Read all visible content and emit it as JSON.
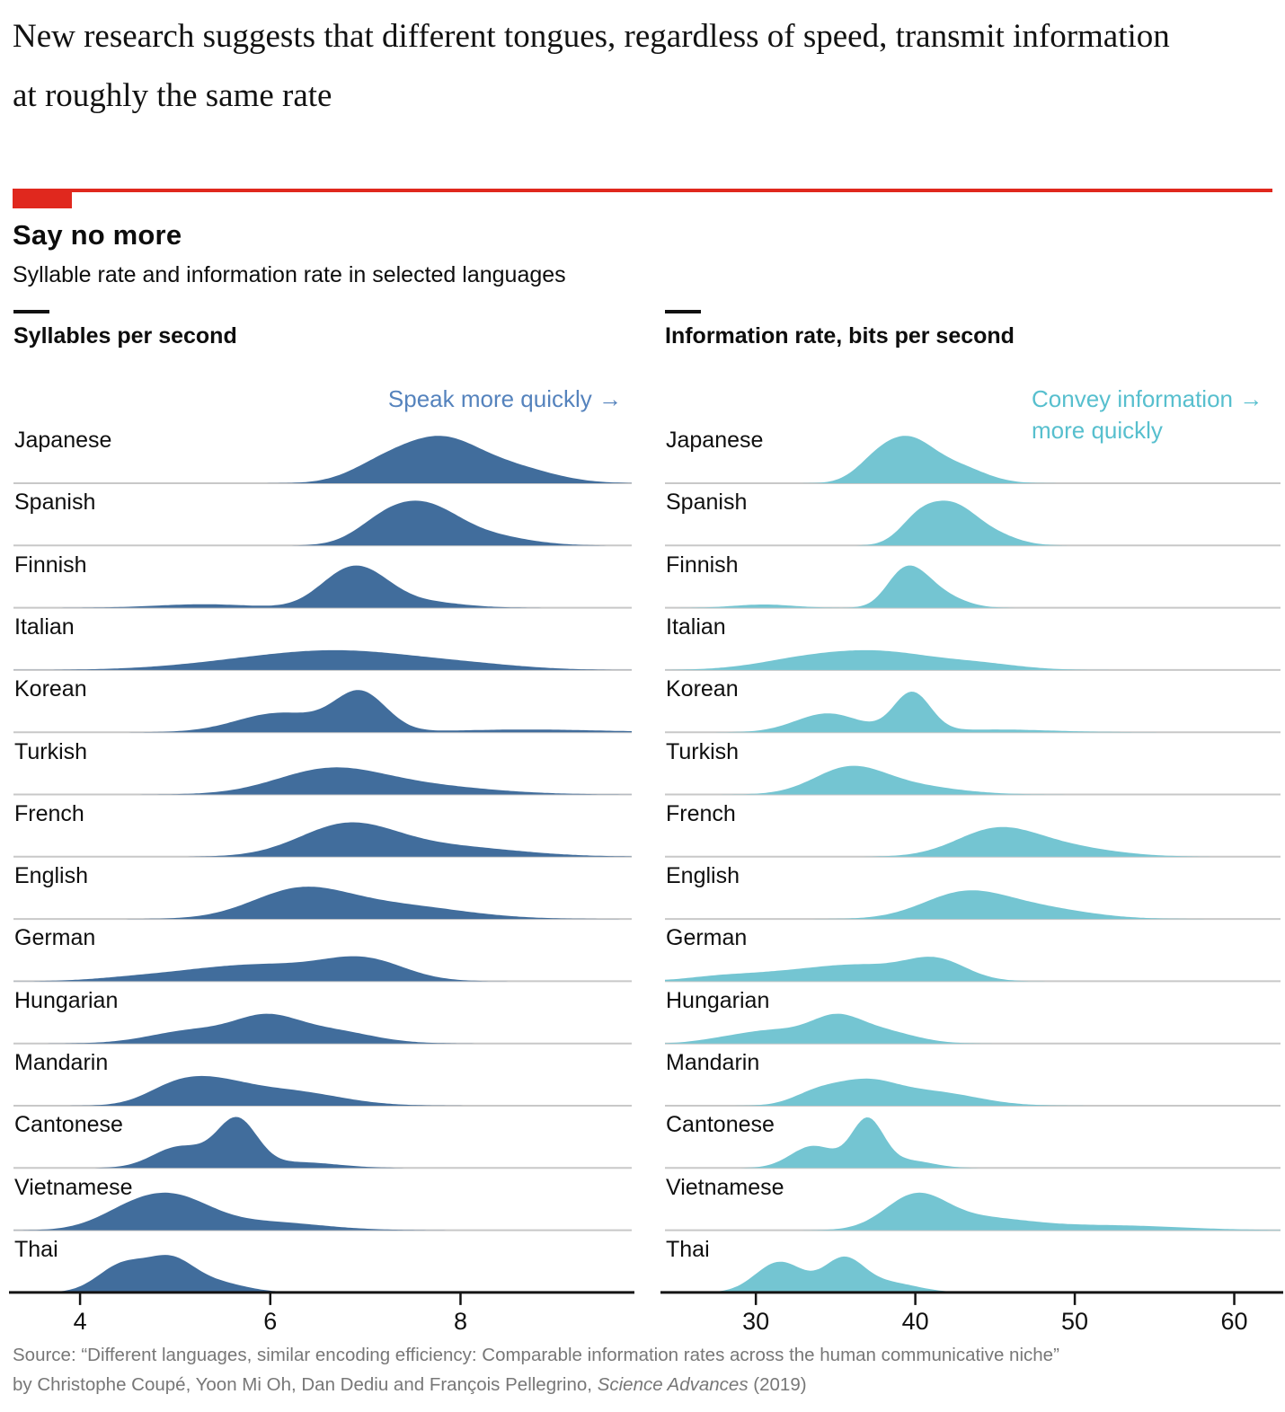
{
  "headline": "New research suggests that different tongues, regardless of speed, transmit information at roughly the same rate",
  "title": "Say no more",
  "subtitle": "Syllable rate and information rate in selected languages",
  "colors": {
    "accent_red": "#e0281e",
    "syllable_fill": "#416d9c",
    "info_fill": "#74c5d2",
    "annotation_blue": "#5583bd",
    "annotation_teal": "#57bfce",
    "baseline_gray": "#c8c8c8",
    "axis_black": "#141414",
    "source_gray": "#777777"
  },
  "source": {
    "line1": "Source: “Different languages, similar encoding efficiency: Comparable information rates across the human communicative niche”",
    "line2_prefix": "by Christophe Coupé, Yoon Mi Oh, Dan Dediu and François Pellegrino, ",
    "line2_italic": "Science Advances",
    "line2_suffix": " (2019)"
  },
  "chart_data": {
    "type": "area",
    "subtype": "ridgeline-density",
    "panels": [
      {
        "title": "Syllables per second",
        "annotation": "Speak more quickly →",
        "domain": [
          3.3,
          9.8
        ],
        "ticks": [
          4,
          6,
          8
        ],
        "grid": false
      },
      {
        "title": "Information rate, bits per second",
        "annotation_line1": "Convey information →",
        "annotation_line2": "more quickly",
        "domain": [
          24.3,
          62.9
        ],
        "ticks": [
          30,
          40,
          50,
          60
        ],
        "grid": false
      }
    ],
    "languages": [
      {
        "name": "Japanese",
        "syllables": {
          "peak": 7.8,
          "amp": 0.91,
          "components": [
            [
              7.8,
              0.38,
              1
            ],
            [
              8.5,
              0.45,
              0.42
            ],
            [
              7.2,
              0.35,
              0.5
            ]
          ]
        },
        "info": {
          "peak": 39.7,
          "amp": 0.91,
          "components": [
            [
              39.6,
              1.5,
              1
            ],
            [
              42.5,
              1.8,
              0.45
            ],
            [
              37.5,
              1.3,
              0.5
            ]
          ]
        }
      },
      {
        "name": "Spanish",
        "syllables": {
          "peak": 7.6,
          "amp": 0.86,
          "components": [
            [
              7.65,
              0.33,
              1
            ],
            [
              7.2,
              0.3,
              0.72
            ],
            [
              8.2,
              0.45,
              0.35
            ]
          ]
        },
        "info": {
          "peak": 42.3,
          "amp": 0.86,
          "components": [
            [
              42.3,
              1.4,
              1
            ],
            [
              40.2,
              1.2,
              0.72
            ],
            [
              44.6,
              1.6,
              0.35
            ]
          ]
        }
      },
      {
        "name": "Finnish",
        "syllables": {
          "peak": 7.0,
          "amp": 0.81,
          "components": [
            [
              7.0,
              0.3,
              1
            ],
            [
              6.7,
              0.28,
              0.6
            ],
            [
              7.6,
              0.4,
              0.2
            ],
            [
              5.3,
              0.5,
              0.12
            ]
          ]
        },
        "info": {
          "peak": 40.0,
          "amp": 0.81,
          "components": [
            [
              40.0,
              1.2,
              1
            ],
            [
              38.9,
              1.0,
              0.55
            ],
            [
              42.0,
              1.3,
              0.3
            ],
            [
              30.5,
              1.8,
              0.11
            ]
          ]
        }
      },
      {
        "name": "Italian",
        "syllables": {
          "peak": 6.9,
          "amp": 0.38,
          "components": [
            [
              6.9,
              0.75,
              1
            ],
            [
              5.9,
              0.8,
              0.6
            ],
            [
              8.1,
              0.6,
              0.3
            ]
          ]
        },
        "info": {
          "peak": 38.3,
          "amp": 0.38,
          "components": [
            [
              38.0,
              3.2,
              1
            ],
            [
              33.0,
              3.0,
              0.6
            ],
            [
              44.0,
              2.6,
              0.35
            ]
          ]
        }
      },
      {
        "name": "Korean",
        "syllables": {
          "peak": 6.95,
          "amp": 0.81,
          "components": [
            [
              6.95,
              0.27,
              1
            ],
            [
              6.1,
              0.45,
              0.5
            ],
            [
              8.7,
              0.8,
              0.07
            ]
          ]
        },
        "info": {
          "peak": 39.8,
          "amp": 0.78,
          "components": [
            [
              39.8,
              1.15,
              1
            ],
            [
              34.5,
              2.0,
              0.48
            ],
            [
              45.0,
              3.5,
              0.07
            ]
          ]
        }
      },
      {
        "name": "Turkish",
        "syllables": {
          "peak": 6.6,
          "amp": 0.52,
          "components": [
            [
              6.6,
              0.55,
              1
            ],
            [
              7.5,
              0.75,
              0.4
            ]
          ]
        },
        "info": {
          "peak": 35.8,
          "amp": 0.55,
          "components": [
            [
              35.8,
              2.2,
              1
            ],
            [
              39.5,
              3.0,
              0.35
            ]
          ]
        }
      },
      {
        "name": "French",
        "syllables": {
          "peak": 6.8,
          "amp": 0.66,
          "components": [
            [
              6.8,
              0.5,
              1
            ],
            [
              7.8,
              0.75,
              0.35
            ]
          ]
        },
        "info": {
          "peak": 45.2,
          "amp": 0.57,
          "components": [
            [
              45.0,
              2.5,
              1
            ],
            [
              49.0,
              3.2,
              0.4
            ]
          ]
        }
      },
      {
        "name": "English",
        "syllables": {
          "peak": 6.3,
          "amp": 0.62,
          "components": [
            [
              6.3,
              0.5,
              1
            ],
            [
              7.3,
              0.7,
              0.5
            ]
          ]
        },
        "info": {
          "peak": 43.3,
          "amp": 0.55,
          "components": [
            [
              43.0,
              2.6,
              1
            ],
            [
              47.5,
              3.2,
              0.45
            ]
          ]
        }
      },
      {
        "name": "German",
        "syllables": {
          "peak": 7.0,
          "amp": 0.48,
          "components": [
            [
              7.0,
              0.42,
              1
            ],
            [
              5.4,
              0.65,
              0.5
            ],
            [
              6.2,
              0.6,
              0.55
            ],
            [
              4.5,
              0.4,
              0.08
            ]
          ]
        },
        "info": {
          "peak": 41.3,
          "amp": 0.47,
          "components": [
            [
              41.3,
              1.9,
              1
            ],
            [
              33.0,
              4.0,
              0.5
            ],
            [
              37.0,
              2.5,
              0.45
            ],
            [
              27.5,
              1.8,
              0.1
            ]
          ]
        }
      },
      {
        "name": "Hungarian",
        "syllables": {
          "peak": 5.95,
          "amp": 0.57,
          "components": [
            [
              5.95,
              0.33,
              1
            ],
            [
              5.2,
              0.45,
              0.6
            ],
            [
              6.6,
              0.45,
              0.6
            ]
          ]
        },
        "info": {
          "peak": 35.0,
          "amp": 0.57,
          "components": [
            [
              35.0,
              1.6,
              1
            ],
            [
              31.0,
              2.2,
              0.55
            ],
            [
              38.0,
              2.0,
              0.5
            ],
            [
              27.5,
              1.5,
              0.1
            ]
          ]
        }
      },
      {
        "name": "Mandarin",
        "syllables": {
          "peak": 5.35,
          "amp": 0.57,
          "components": [
            [
              5.35,
              0.38,
              1
            ],
            [
              6.15,
              0.55,
              0.75
            ],
            [
              4.95,
              0.3,
              0.55
            ]
          ]
        },
        "info": {
          "peak": 36.8,
          "amp": 0.52,
          "components": [
            [
              36.8,
              1.9,
              1
            ],
            [
              41.0,
              2.8,
              0.65
            ],
            [
              33.8,
              1.5,
              0.55
            ]
          ]
        }
      },
      {
        "name": "Cantonese",
        "syllables": {
          "peak": 5.65,
          "amp": 0.98,
          "components": [
            [
              5.65,
              0.21,
              1
            ],
            [
              5.05,
              0.28,
              0.45
            ],
            [
              6.3,
              0.4,
              0.12
            ]
          ]
        },
        "info": {
          "peak": 37.0,
          "amp": 0.97,
          "components": [
            [
              37.0,
              1.0,
              1
            ],
            [
              33.6,
              1.4,
              0.46
            ],
            [
              39.6,
              1.5,
              0.15
            ]
          ]
        }
      },
      {
        "name": "Vietnamese",
        "syllables": {
          "peak": 5.0,
          "amp": 0.72,
          "components": [
            [
              5.0,
              0.38,
              1
            ],
            [
              4.5,
              0.35,
              0.55
            ],
            [
              5.9,
              0.6,
              0.3
            ]
          ]
        },
        "info": {
          "peak": 40.0,
          "amp": 0.72,
          "components": [
            [
              40.0,
              1.9,
              1
            ],
            [
              44.0,
              3.0,
              0.35
            ],
            [
              52.0,
              4.5,
              0.15
            ]
          ]
        }
      },
      {
        "name": "Thai",
        "syllables": {
          "peak": 4.95,
          "amp": 0.72,
          "components": [
            [
              4.45,
              0.26,
              0.95
            ],
            [
              4.95,
              0.24,
              1
            ],
            [
              5.4,
              0.32,
              0.35
            ]
          ]
        },
        "info": {
          "peak": 35.5,
          "amp": 0.69,
          "components": [
            [
              31.5,
              1.5,
              0.95
            ],
            [
              35.5,
              1.25,
              1
            ],
            [
              38.3,
              1.8,
              0.3
            ]
          ]
        }
      }
    ]
  }
}
